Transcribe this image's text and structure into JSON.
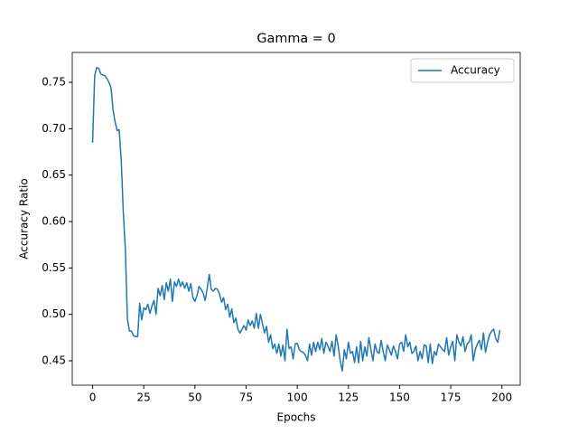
{
  "chart_data": {
    "type": "line",
    "title": "Gamma = 0",
    "xlabel": "Epochs",
    "ylabel": "Accuracy Ratio",
    "x": [
      0,
      1,
      2,
      3,
      4,
      5,
      6,
      7,
      8,
      9,
      10,
      11,
      12,
      13,
      14,
      15,
      16,
      17,
      18,
      19,
      20,
      21,
      22,
      23,
      24,
      25,
      26,
      27,
      28,
      29,
      30,
      31,
      32,
      33,
      34,
      35,
      36,
      37,
      38,
      39,
      40,
      41,
      42,
      43,
      44,
      45,
      46,
      47,
      48,
      49,
      50,
      51,
      52,
      53,
      54,
      55,
      56,
      57,
      58,
      59,
      60,
      61,
      62,
      63,
      64,
      65,
      66,
      67,
      68,
      69,
      70,
      71,
      72,
      73,
      74,
      75,
      76,
      77,
      78,
      79,
      80,
      81,
      82,
      83,
      84,
      85,
      86,
      87,
      88,
      89,
      90,
      91,
      92,
      93,
      94,
      95,
      96,
      97,
      98,
      99,
      100,
      101,
      102,
      103,
      104,
      105,
      106,
      107,
      108,
      109,
      110,
      111,
      112,
      113,
      114,
      115,
      116,
      117,
      118,
      119,
      120,
      121,
      122,
      123,
      124,
      125,
      126,
      127,
      128,
      129,
      130,
      131,
      132,
      133,
      134,
      135,
      136,
      137,
      138,
      139,
      140,
      141,
      142,
      143,
      144,
      145,
      146,
      147,
      148,
      149,
      150,
      151,
      152,
      153,
      154,
      155,
      156,
      157,
      158,
      159,
      160,
      161,
      162,
      163,
      164,
      165,
      166,
      167,
      168,
      169,
      170,
      171,
      172,
      173,
      174,
      175,
      176,
      177,
      178,
      179,
      180,
      181,
      182,
      183,
      184,
      185,
      186,
      187,
      188,
      189,
      190,
      191,
      192,
      193,
      194,
      195,
      196,
      197,
      198,
      199
    ],
    "series": [
      {
        "name": "Accuracy",
        "color": "#1f77b4",
        "values": [
          0.685,
          0.757,
          0.766,
          0.765,
          0.759,
          0.758,
          0.757,
          0.754,
          0.75,
          0.744,
          0.72,
          0.707,
          0.698,
          0.699,
          0.665,
          0.61,
          0.57,
          0.495,
          0.482,
          0.482,
          0.477,
          0.476,
          0.476,
          0.512,
          0.494,
          0.507,
          0.505,
          0.511,
          0.501,
          0.509,
          0.515,
          0.5,
          0.528,
          0.52,
          0.531,
          0.516,
          0.534,
          0.525,
          0.538,
          0.514,
          0.535,
          0.53,
          0.538,
          0.53,
          0.535,
          0.528,
          0.534,
          0.525,
          0.533,
          0.518,
          0.514,
          0.52,
          0.53,
          0.527,
          0.523,
          0.515,
          0.528,
          0.543,
          0.527,
          0.525,
          0.528,
          0.527,
          0.522,
          0.513,
          0.518,
          0.505,
          0.511,
          0.497,
          0.506,
          0.491,
          0.496,
          0.484,
          0.48,
          0.484,
          0.488,
          0.483,
          0.494,
          0.488,
          0.493,
          0.485,
          0.501,
          0.485,
          0.5,
          0.49,
          0.48,
          0.487,
          0.47,
          0.478,
          0.463,
          0.468,
          0.458,
          0.468,
          0.455,
          0.467,
          0.45,
          0.484,
          0.463,
          0.465,
          0.452,
          0.468,
          0.469,
          0.462,
          0.46,
          0.459,
          0.456,
          0.45,
          0.468,
          0.456,
          0.47,
          0.46,
          0.47,
          0.462,
          0.474,
          0.458,
          0.47,
          0.466,
          0.46,
          0.471,
          0.455,
          0.478,
          0.466,
          0.45,
          0.439,
          0.462,
          0.452,
          0.47,
          0.458,
          0.46,
          0.448,
          0.465,
          0.448,
          0.471,
          0.45,
          0.465,
          0.455,
          0.475,
          0.462,
          0.45,
          0.468,
          0.46,
          0.458,
          0.472,
          0.46,
          0.45,
          0.467,
          0.462,
          0.456,
          0.466,
          0.46,
          0.452,
          0.468,
          0.47,
          0.46,
          0.478,
          0.465,
          0.47,
          0.458,
          0.46,
          0.466,
          0.45,
          0.46,
          0.452,
          0.467,
          0.466,
          0.448,
          0.468,
          0.447,
          0.46,
          0.456,
          0.468,
          0.465,
          0.462,
          0.46,
          0.475,
          0.456,
          0.465,
          0.471,
          0.45,
          0.478,
          0.47,
          0.466,
          0.476,
          0.46,
          0.468,
          0.47,
          0.478,
          0.45,
          0.462,
          0.468,
          0.472,
          0.462,
          0.48,
          0.459,
          0.47,
          0.478,
          0.482,
          0.484,
          0.474,
          0.47,
          0.483
        ]
      }
    ],
    "xlim": [
      -9.95,
      208.95
    ],
    "xticks": [
      0,
      25,
      50,
      75,
      100,
      125,
      150,
      175,
      200
    ],
    "ylim": [
      0.4237,
      0.7822
    ],
    "yticks": [
      {
        "value": 0.45,
        "label": "0.45"
      },
      {
        "value": 0.5,
        "label": "0.50"
      },
      {
        "value": 0.55,
        "label": "0.55"
      },
      {
        "value": 0.6,
        "label": "0.60"
      },
      {
        "value": 0.65,
        "label": "0.65"
      },
      {
        "value": 0.7,
        "label": "0.70"
      },
      {
        "value": 0.75,
        "label": "0.75"
      }
    ],
    "legend": "upper right",
    "grid": false
  }
}
